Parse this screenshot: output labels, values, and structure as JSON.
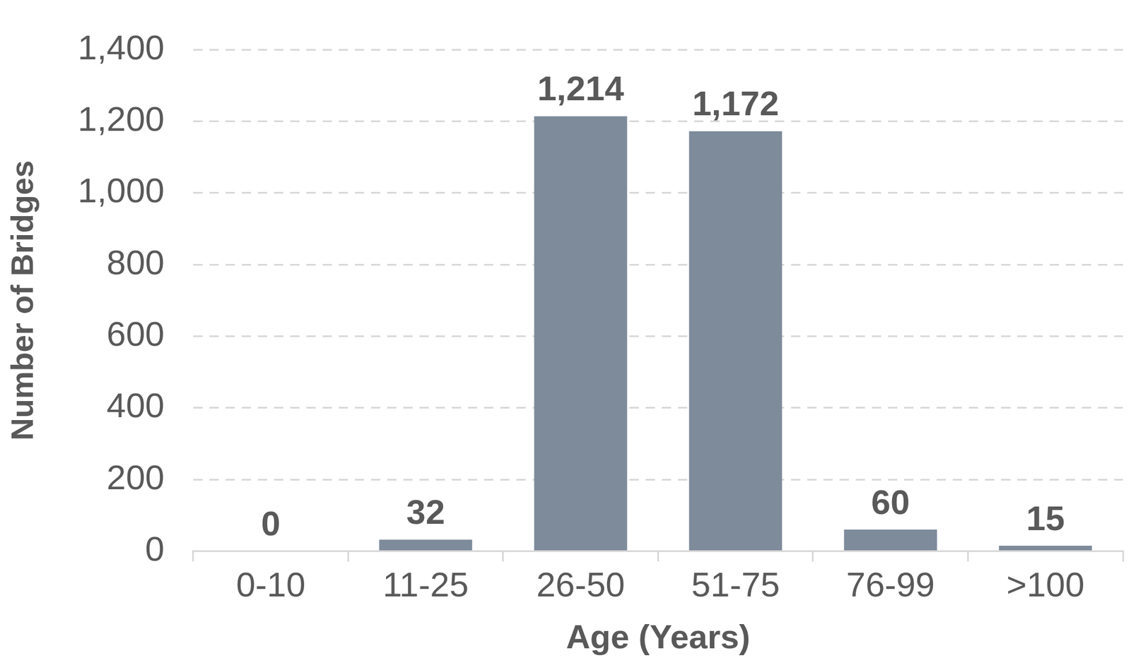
{
  "chart_data": {
    "type": "bar",
    "x_label": "Age (Years)",
    "y_label": "Number of Bridges",
    "categories": [
      "0-10",
      "11-25",
      "26-50",
      "51-75",
      "76-99",
      ">100"
    ],
    "values": [
      0,
      32,
      1214,
      1172,
      60,
      15
    ],
    "value_labels": [
      "0",
      "32",
      "1,214",
      "1,172",
      "60",
      "15"
    ],
    "color": "#7d8b9b",
    "ylim": [
      0,
      1400
    ],
    "yticks": [
      0,
      200,
      400,
      600,
      800,
      {
        "value": 1000,
        "label": "1,000"
      },
      {
        "value": 1200,
        "label": "1,200"
      },
      {
        "value": 1400,
        "label": "1,400"
      }
    ],
    "grid": true,
    "data_labels": true
  }
}
